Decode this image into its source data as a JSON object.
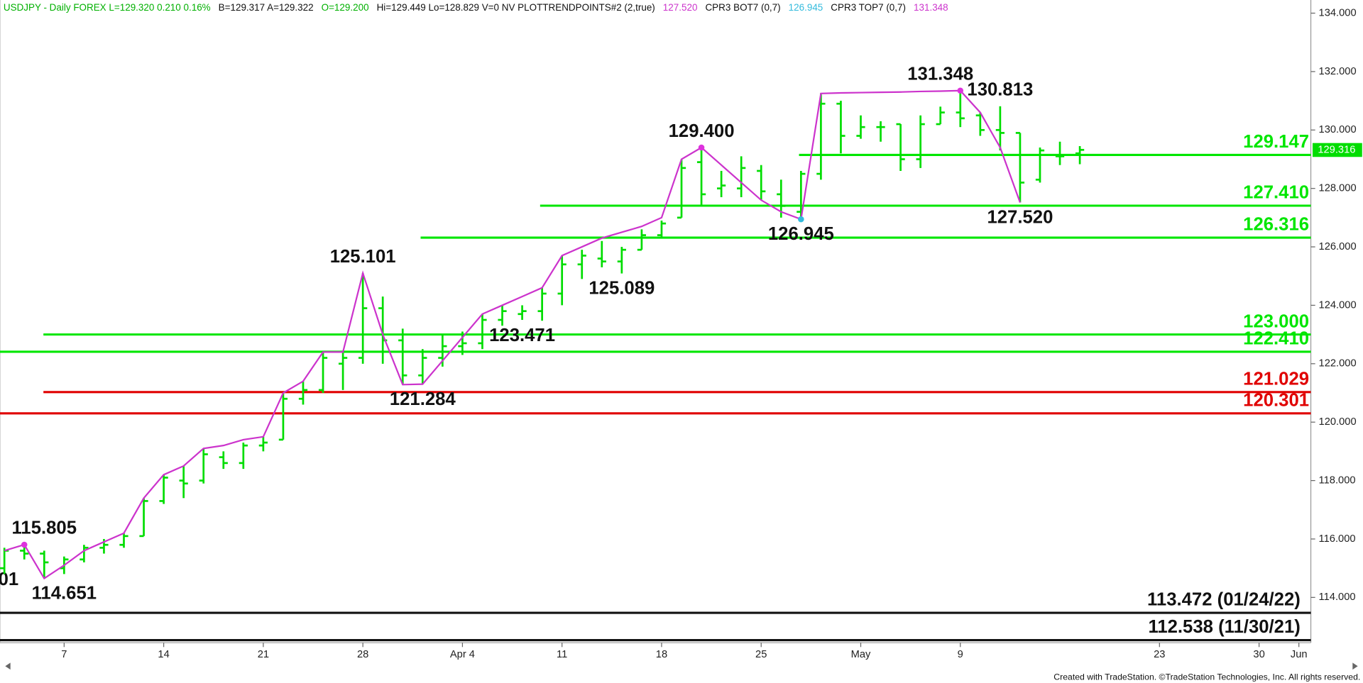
{
  "header": {
    "segments": [
      {
        "text": "USDJPY - Daily  FOREX  L=129.320  0.210  0.16%",
        "color": "#00b000"
      },
      {
        "text": "B=129.317  A=129.322",
        "color": "#111111"
      },
      {
        "text": "O=129.200",
        "color": "#00b000"
      },
      {
        "text": "Hi=129.449  Lo=128.829  V=0  NV  PLOTTRENDPOINTS#2 (2,true)",
        "color": "#111111"
      },
      {
        "text": "127.520",
        "color": "#cc33cc"
      },
      {
        "text": "CPR3 BOT7 (0,7)",
        "color": "#111111"
      },
      {
        "text": "126.945",
        "color": "#33bbdd"
      },
      {
        "text": "CPR3 TOP7 (0,7)",
        "color": "#111111"
      },
      {
        "text": "131.348",
        "color": "#cc33cc"
      }
    ]
  },
  "chart_data": {
    "type": "ohlc",
    "color": "#00dd00",
    "open": [
      115.0,
      115.6,
      115.5,
      115.0,
      115.3,
      115.7,
      115.8,
      116.1,
      117.3,
      118.0,
      118.0,
      118.8,
      118.6,
      119.2,
      119.4,
      120.8,
      121.1,
      122.0,
      122.2,
      123.9,
      122.8,
      121.6,
      122.2,
      122.6,
      122.7,
      123.5,
      123.7,
      123.8,
      124.4,
      125.4,
      125.6,
      125.5,
      125.9,
      126.4,
      127.0,
      128.9,
      128.0,
      128.0,
      128.6,
      127.8,
      127.2,
      128.5,
      130.9,
      129.8,
      130.1,
      130.2,
      129.0,
      130.2,
      130.6,
      130.5,
      130.0,
      129.9,
      128.3,
      129.1,
      129.2
    ],
    "high": [
      115.7,
      115.8,
      115.6,
      115.4,
      115.8,
      116.0,
      116.2,
      117.4,
      118.2,
      118.5,
      119.1,
      119.0,
      119.3,
      119.5,
      121.0,
      121.4,
      122.4,
      122.4,
      125.101,
      124.3,
      123.2,
      122.5,
      123.0,
      123.1,
      123.7,
      124.0,
      124.0,
      124.6,
      125.7,
      125.9,
      126.2,
      126.0,
      126.6,
      126.9,
      129.0,
      129.4,
      128.6,
      129.1,
      128.8,
      128.3,
      128.6,
      131.25,
      131.0,
      130.5,
      130.3,
      130.2,
      130.5,
      130.8,
      131.348,
      130.6,
      130.813,
      129.9,
      129.4,
      129.6,
      129.449
    ],
    "low": [
      114.8,
      115.3,
      114.651,
      114.8,
      115.2,
      115.5,
      115.7,
      116.1,
      117.2,
      117.4,
      117.9,
      118.4,
      118.4,
      119.0,
      119.4,
      120.6,
      121.0,
      121.1,
      122.0,
      122.0,
      121.284,
      121.3,
      121.9,
      122.3,
      122.5,
      123.3,
      123.5,
      123.471,
      124.0,
      124.9,
      125.3,
      125.089,
      125.9,
      126.3,
      127.0,
      127.4,
      127.7,
      127.7,
      127.6,
      127.0,
      126.945,
      128.3,
      129.2,
      129.7,
      129.6,
      128.6,
      128.7,
      130.2,
      130.1,
      129.8,
      129.3,
      127.52,
      128.2,
      128.8,
      128.829
    ],
    "close": [
      115.6,
      115.5,
      115.2,
      115.3,
      115.7,
      115.8,
      116.1,
      117.3,
      118.1,
      117.9,
      118.9,
      118.6,
      119.2,
      119.3,
      120.8,
      121.1,
      122.2,
      122.2,
      123.9,
      122.8,
      121.6,
      122.2,
      122.6,
      122.7,
      123.5,
      123.8,
      123.8,
      124.4,
      125.4,
      125.7,
      125.5,
      125.9,
      126.4,
      126.8,
      128.7,
      127.8,
      128.1,
      128.7,
      127.9,
      127.4,
      128.5,
      130.9,
      129.8,
      130.1,
      130.1,
      129.0,
      130.2,
      130.6,
      130.4,
      130.0,
      129.9,
      128.2,
      129.3,
      129.1,
      129.32
    ],
    "trend": {
      "color": "#cc33cc",
      "values": [
        115.6,
        115.805,
        114.651,
        115.1,
        115.6,
        115.9,
        116.2,
        117.4,
        118.2,
        118.5,
        119.1,
        119.2,
        119.4,
        119.5,
        121.0,
        121.4,
        122.4,
        122.4,
        125.101,
        123.0,
        121.284,
        121.3,
        122.1,
        122.9,
        123.7,
        124.0,
        124.3,
        124.6,
        125.7,
        126.0,
        126.3,
        126.5,
        126.7,
        127.0,
        129.0,
        129.4,
        128.8,
        128.2,
        127.6,
        127.2,
        126.945,
        131.25,
        131.27,
        131.28,
        131.29,
        131.3,
        131.32,
        131.33,
        131.348,
        130.6,
        129.4,
        127.52,
        null,
        null,
        null
      ]
    },
    "pivots": [
      {
        "x": 1,
        "value": 115.805,
        "color": "#dd33dd"
      },
      {
        "x": 35,
        "value": 129.4,
        "color": "#dd33dd"
      },
      {
        "x": 40,
        "value": 126.945,
        "color": "#33bbdd"
      },
      {
        "x": 48,
        "value": 131.348,
        "color": "#dd33dd"
      }
    ],
    "levels": [
      {
        "value": 129.147,
        "label": "129.147",
        "from": 39.9,
        "color": "#00e600"
      },
      {
        "value": 127.41,
        "label": "127.410",
        "from": 26.9,
        "color": "#00e600"
      },
      {
        "value": 126.316,
        "label": "126.316",
        "from": 20.9,
        "color": "#00e600"
      },
      {
        "value": 123.0,
        "label": "123.000",
        "from": 1.96,
        "color": "#00e600"
      },
      {
        "value": 122.41,
        "label": "122.410",
        "from": -0.22,
        "color": "#00e600"
      },
      {
        "value": 121.029,
        "label": "121.029",
        "from": 1.96,
        "color": "#e00000"
      },
      {
        "value": 120.301,
        "label": "120.301",
        "from": -0.22,
        "color": "#e00000"
      },
      {
        "value": 113.472,
        "label": "113.472 (01/24/22)",
        "from": -0.22,
        "color": "#111111"
      },
      {
        "value": 112.538,
        "label": "112.538 (11/30/21)",
        "from": -0.22,
        "color": "#111111"
      }
    ],
    "annotations": [
      {
        "label": "115.805",
        "x": 2,
        "value": 115.805,
        "pos": "above"
      },
      {
        "label": "114.651",
        "x": 3,
        "value": 114.651,
        "pos": "below"
      },
      {
        "label": "125.101",
        "x": 18,
        "value": 125.101,
        "pos": "above"
      },
      {
        "label": "121.284",
        "x": 21,
        "value": 121.284,
        "pos": "below"
      },
      {
        "label": "123.471",
        "x": 26,
        "value": 123.471,
        "pos": "below"
      },
      {
        "label": "125.089",
        "x": 31,
        "value": 125.089,
        "pos": "below"
      },
      {
        "label": "129.400",
        "x": 35,
        "value": 129.4,
        "pos": "above"
      },
      {
        "label": "126.945",
        "x": 40,
        "value": 126.945,
        "pos": "below"
      },
      {
        "label": "131.348",
        "x": 47,
        "value": 131.348,
        "pos": "above"
      },
      {
        "label": "130.813",
        "x": 50,
        "value": 130.813,
        "pos": "above"
      },
      {
        "label": "127.520",
        "x": 51,
        "value": 127.52,
        "pos": "below"
      }
    ],
    "edge_label": "01",
    "last_price": {
      "value": 129.316,
      "label": "129.316"
    },
    "xlim": [
      -0.22,
      65.6
    ],
    "ylim": [
      112.45,
      134.45
    ],
    "xticks": [
      {
        "value": 3,
        "label": "7"
      },
      {
        "value": 8,
        "label": "14"
      },
      {
        "value": 13,
        "label": "21"
      },
      {
        "value": 18,
        "label": "28"
      },
      {
        "value": 23,
        "label": "Apr  4"
      },
      {
        "value": 28,
        "label": "11"
      },
      {
        "value": 33,
        "label": "18"
      },
      {
        "value": 38,
        "label": "25"
      },
      {
        "value": 43,
        "label": "May"
      },
      {
        "value": 48,
        "label": "9"
      },
      {
        "value": 58,
        "label": "23"
      },
      {
        "value": 63,
        "label": "30"
      },
      {
        "value": 65,
        "label": "Jun"
      }
    ],
    "yticks": [
      {
        "value": 114,
        "label": "114.000"
      },
      {
        "value": 116,
        "label": "116.000"
      },
      {
        "value": 118,
        "label": "118.000"
      },
      {
        "value": 120,
        "label": "120.000"
      },
      {
        "value": 122,
        "label": "122.000"
      },
      {
        "value": 124,
        "label": "124.000"
      },
      {
        "value": 126,
        "label": "126.000"
      },
      {
        "value": 128,
        "label": "128.000"
      },
      {
        "value": 130,
        "label": "130.000"
      },
      {
        "value": 132,
        "label": "132.000"
      },
      {
        "value": 134,
        "label": "134.000"
      }
    ]
  },
  "footer": "Created with TradeStation. ©TradeStation Technologies, Inc. All rights reserved."
}
